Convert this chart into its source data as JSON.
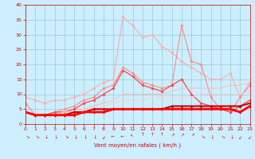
{
  "xlabel": "Vent moyen/en rafales ( km/h )",
  "xlim": [
    0,
    23
  ],
  "ylim": [
    0,
    40
  ],
  "yticks": [
    0,
    5,
    10,
    15,
    20,
    25,
    30,
    35,
    40
  ],
  "xticks": [
    0,
    1,
    2,
    3,
    4,
    5,
    6,
    7,
    8,
    9,
    10,
    11,
    12,
    13,
    14,
    15,
    16,
    17,
    18,
    19,
    20,
    21,
    22,
    23
  ],
  "background_color": "#cceeff",
  "grid_color": "#99cccc",
  "series": [
    {
      "x": [
        0,
        1,
        2,
        3,
        4,
        5,
        6,
        7,
        8,
        9,
        10,
        11,
        12,
        13,
        14,
        15,
        16,
        17,
        18,
        19,
        20,
        21,
        22,
        23
      ],
      "y": [
        9,
        8,
        7,
        8,
        8,
        9,
        10,
        12,
        14,
        15,
        36,
        33,
        29,
        30,
        26,
        24,
        21,
        19,
        17,
        15,
        15,
        17,
        9,
        14
      ],
      "color": "#ffaaaa",
      "lw": 0.8,
      "marker": "D",
      "ms": 1.8
    },
    {
      "x": [
        0,
        1,
        2,
        3,
        4,
        5,
        6,
        7,
        8,
        9,
        10,
        11,
        12,
        13,
        14,
        15,
        16,
        17,
        18,
        19,
        20,
        21,
        22,
        23
      ],
      "y": [
        7,
        3,
        3,
        4,
        5,
        6,
        8,
        9,
        12,
        13,
        19,
        17,
        14,
        13,
        12,
        13,
        33,
        21,
        20,
        9,
        5,
        4,
        9,
        13
      ],
      "color": "#ff8888",
      "lw": 0.8,
      "marker": "D",
      "ms": 1.8
    },
    {
      "x": [
        0,
        1,
        2,
        3,
        4,
        5,
        6,
        7,
        8,
        9,
        10,
        11,
        12,
        13,
        14,
        15,
        16,
        17,
        18,
        19,
        20,
        21,
        22,
        23
      ],
      "y": [
        4,
        3,
        3,
        4,
        4,
        5,
        7,
        8,
        10,
        12,
        18,
        16,
        13,
        12,
        11,
        13,
        15,
        10,
        7,
        6,
        5,
        4,
        6,
        8
      ],
      "color": "#ff4444",
      "lw": 0.9,
      "marker": "D",
      "ms": 1.8
    },
    {
      "x": [
        0,
        1,
        2,
        3,
        4,
        5,
        6,
        7,
        8,
        9,
        10,
        11,
        12,
        13,
        14,
        15,
        16,
        17,
        18,
        19,
        20,
        21,
        22,
        23
      ],
      "y": [
        4,
        3,
        3,
        3,
        4,
        4,
        5,
        6,
        7,
        8,
        10,
        10,
        10,
        10,
        10,
        11,
        12,
        12,
        12,
        12,
        12,
        13,
        13,
        14
      ],
      "color": "#ffbbbb",
      "lw": 0.8,
      "marker": null,
      "ms": 0
    },
    {
      "x": [
        0,
        1,
        2,
        3,
        4,
        5,
        6,
        7,
        8,
        9,
        10,
        11,
        12,
        13,
        14,
        15,
        16,
        17,
        18,
        19,
        20,
        21,
        22,
        23
      ],
      "y": [
        4,
        3,
        3,
        3,
        4,
        4,
        5,
        5,
        6,
        7,
        8,
        8,
        8,
        9,
        9,
        9,
        9,
        9,
        10,
        10,
        10,
        10,
        10,
        11
      ],
      "color": "#ffcccc",
      "lw": 0.8,
      "marker": null,
      "ms": 0
    },
    {
      "x": [
        0,
        1,
        2,
        3,
        4,
        5,
        6,
        7,
        8,
        9,
        10,
        11,
        12,
        13,
        14,
        15,
        16,
        17,
        18,
        19,
        20,
        21,
        22,
        23
      ],
      "y": [
        4,
        3,
        3,
        3,
        3,
        4,
        4,
        5,
        5,
        5,
        5,
        5,
        5,
        5,
        5,
        6,
        6,
        6,
        6,
        6,
        6,
        6,
        6,
        7
      ],
      "color": "#cc0000",
      "lw": 1.5,
      "marker": "D",
      "ms": 1.8
    },
    {
      "x": [
        0,
        1,
        2,
        3,
        4,
        5,
        6,
        7,
        8,
        9,
        10,
        11,
        12,
        13,
        14,
        15,
        16,
        17,
        18,
        19,
        20,
        21,
        22,
        23
      ],
      "y": [
        4,
        3,
        3,
        3,
        3,
        3,
        4,
        4,
        4,
        5,
        5,
        5,
        5,
        5,
        5,
        5,
        5,
        5,
        5,
        5,
        5,
        5,
        4,
        6
      ],
      "color": "#ff0000",
      "lw": 2.0,
      "marker": "D",
      "ms": 1.8
    }
  ],
  "wind_angles": [
    225,
    225,
    270,
    270,
    225,
    270,
    270,
    270,
    315,
    0,
    0,
    45,
    90,
    90,
    90,
    135,
    135,
    135,
    225,
    270,
    225,
    270,
    315,
    315
  ]
}
